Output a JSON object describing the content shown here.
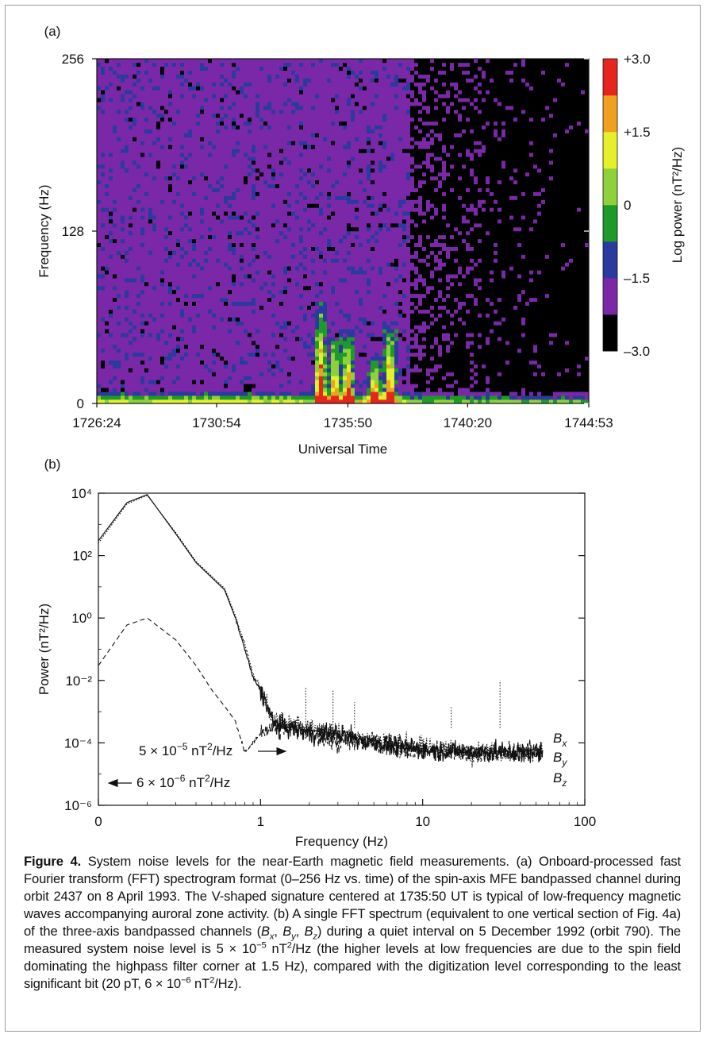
{
  "chart_data": [
    {
      "type": "heatmap",
      "panel_label": "(a)",
      "xlabel": "Universal Time",
      "ylabel": "Frequency (Hz)",
      "x_ticks": [
        "1726:24",
        "1730:54",
        "1735:50",
        "1740:20",
        "1744:53"
      ],
      "y_ticks": [
        "0",
        "128",
        "256"
      ],
      "ylim": [
        0,
        256
      ],
      "colorbar": {
        "label": "Log power (nT²/Hz)",
        "range": [
          -3.0,
          3.0
        ],
        "ticks": [
          "+3.0",
          "+1.5",
          "0",
          "–1.5",
          "–3.0"
        ],
        "colors": [
          "#000000",
          "#7a28a8",
          "#2a3a9e",
          "#1e9a2a",
          "#8fd13a",
          "#e6f02a",
          "#f0a020",
          "#e6261e"
        ]
      },
      "background_level": -1.8,
      "quiet_region_after": "1738:10",
      "events": [
        {
          "time": "1734:48",
          "max_freq_hz": 78
        },
        {
          "time": "1735:20",
          "max_freq_hz": 50
        },
        {
          "time": "1735:50",
          "max_freq_hz": 55
        },
        {
          "time": "1736:50",
          "max_freq_hz": 38
        },
        {
          "time": "1737:25",
          "max_freq_hz": 60
        }
      ]
    },
    {
      "type": "line",
      "panel_label": "(b)",
      "xlabel": "Frequency (Hz)",
      "ylabel": "Power (nT²/Hz)",
      "x_scale": "log",
      "y_scale": "log",
      "x_ticks": [
        "0",
        "1",
        "10",
        "100"
      ],
      "y_ticks": [
        "10⁴",
        "10²",
        "10⁰",
        "10⁻²",
        "10⁻⁴",
        "10⁻⁶"
      ],
      "xlim": [
        0.1,
        100
      ],
      "ylim": [
        1e-06,
        10000.0
      ],
      "series": [
        {
          "name": "Bx",
          "style": "solid",
          "x": [
            0.1,
            0.15,
            0.2,
            0.3,
            0.4,
            0.6,
            0.7,
            0.8,
            0.9,
            1.0,
            1.1,
            1.2,
            1.5,
            2,
            3,
            5,
            10,
            20,
            55
          ],
          "y": [
            300,
            5000,
            9000,
            500,
            60,
            8,
            1,
            0.1,
            0.012,
            0.005,
            0.0015,
            0.0004,
            0.0003,
            0.0002,
            0.0002,
            0.0001,
            6e-05,
            5e-05,
            5e-05
          ]
        },
        {
          "name": "By",
          "style": "dotted",
          "x": [
            0.1,
            0.15,
            0.2,
            0.3,
            0.4,
            0.6,
            0.7,
            0.8,
            0.9,
            1.0,
            1.1,
            1.2,
            1.5,
            2,
            3,
            5,
            10,
            20,
            55
          ],
          "y": [
            250,
            4500,
            8500,
            550,
            65,
            9,
            1.2,
            0.15,
            0.015,
            0.006,
            0.002,
            0.0005,
            0.0004,
            0.0003,
            0.0002,
            0.00012,
            7e-05,
            5e-05,
            5e-05
          ]
        },
        {
          "name": "Bz",
          "style": "dashed",
          "x": [
            0.1,
            0.15,
            0.2,
            0.3,
            0.4,
            0.5,
            0.6,
            0.7,
            0.8,
            0.9,
            1.0,
            1.2,
            1.5,
            2,
            3,
            5,
            10,
            20,
            55
          ],
          "y": [
            0.03,
            0.6,
            1.0,
            0.2,
            0.03,
            0.005,
            0.0015,
            0.0005,
            5e-05,
            0.0001,
            0.0002,
            0.0003,
            0.0003,
            0.0002,
            0.0001,
            0.0001,
            6e-05,
            5e-05,
            5e-05
          ]
        }
      ],
      "spikes": [
        {
          "x": 1.9,
          "y": 0.006
        },
        {
          "x": 2.8,
          "y": 0.005
        },
        {
          "x": 3.8,
          "y": 0.002
        },
        {
          "x": 15,
          "y": 0.0015
        },
        {
          "x": 30,
          "y": 0.01
        }
      ],
      "annotations": [
        {
          "text_base": "5 × 10",
          "exp": "−5",
          "unit": " nT",
          "unit_exp": "2",
          "unit_tail": "/Hz",
          "arrow": "right"
        },
        {
          "text_base": "6 × 10",
          "exp": "−6",
          "unit": " nT",
          "unit_exp": "2",
          "unit_tail": "/Hz",
          "arrow": "left"
        }
      ],
      "legend": [
        "Bx",
        "By",
        "Bz"
      ]
    }
  ],
  "caption": {
    "label": "Figure 4.",
    "t1": " System noise levels for the near-Earth magnetic field measurements. (a) Onboard-processed fast Fourier transform (FFT) spectrogram format (0–256 Hz vs. time) of the spin-axis MFE bandpassed channel during orbit 2437 on 8 April 1993. The V-shaped signature centered at 1735:50 UT is typical of low-frequency magnetic waves accompanying auroral zone activity. (b) A single FFT spectrum (equivalent to one vertical section of Fig. 4a) of the three-axis bandpassed channels (",
    "bx": "B",
    "bx_sub": "x",
    "sep1": ", ",
    "by": "B",
    "by_sub": "y",
    "sep2": ", ",
    "bz": "B",
    "bz_sub": "z",
    "t2": ") during a quiet interval on 5 December 1992 (orbit 790). The measured system noise level is 5 × 10",
    "t2_exp": "−5",
    "t3": " nT",
    "t3_exp": "2",
    "t4": "/Hz (the higher levels at low frequencies are due to the spin field dominating the highpass filter corner at 1.5 Hz), compared with the digitization level corresponding to the least significant bit (20 pT, 6 × 10",
    "t4_exp": "−6",
    "t5": " nT",
    "t5_exp": "2",
    "t6": "/Hz)."
  }
}
